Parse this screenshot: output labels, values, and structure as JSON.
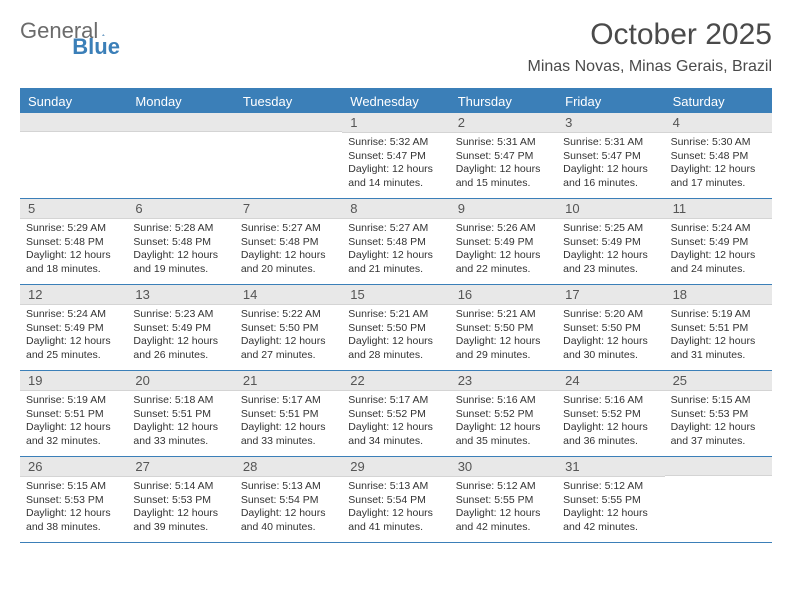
{
  "logo": {
    "text_gray": "General",
    "text_blue": "Blue"
  },
  "title": "October 2025",
  "location": "Minas Novas, Minas Gerais, Brazil",
  "colors": {
    "header_blue": "#3b7fb8",
    "daynum_bg": "#e8e8e8",
    "text_gray": "#6b6b6b",
    "text_dark": "#4a4a4a"
  },
  "day_headers": [
    "Sunday",
    "Monday",
    "Tuesday",
    "Wednesday",
    "Thursday",
    "Friday",
    "Saturday"
  ],
  "weeks": [
    [
      null,
      null,
      null,
      {
        "d": "1",
        "sr": "5:32 AM",
        "ss": "5:47 PM",
        "dl": "12 hours and 14 minutes."
      },
      {
        "d": "2",
        "sr": "5:31 AM",
        "ss": "5:47 PM",
        "dl": "12 hours and 15 minutes."
      },
      {
        "d": "3",
        "sr": "5:31 AM",
        "ss": "5:47 PM",
        "dl": "12 hours and 16 minutes."
      },
      {
        "d": "4",
        "sr": "5:30 AM",
        "ss": "5:48 PM",
        "dl": "12 hours and 17 minutes."
      }
    ],
    [
      {
        "d": "5",
        "sr": "5:29 AM",
        "ss": "5:48 PM",
        "dl": "12 hours and 18 minutes."
      },
      {
        "d": "6",
        "sr": "5:28 AM",
        "ss": "5:48 PM",
        "dl": "12 hours and 19 minutes."
      },
      {
        "d": "7",
        "sr": "5:27 AM",
        "ss": "5:48 PM",
        "dl": "12 hours and 20 minutes."
      },
      {
        "d": "8",
        "sr": "5:27 AM",
        "ss": "5:48 PM",
        "dl": "12 hours and 21 minutes."
      },
      {
        "d": "9",
        "sr": "5:26 AM",
        "ss": "5:49 PM",
        "dl": "12 hours and 22 minutes."
      },
      {
        "d": "10",
        "sr": "5:25 AM",
        "ss": "5:49 PM",
        "dl": "12 hours and 23 minutes."
      },
      {
        "d": "11",
        "sr": "5:24 AM",
        "ss": "5:49 PM",
        "dl": "12 hours and 24 minutes."
      }
    ],
    [
      {
        "d": "12",
        "sr": "5:24 AM",
        "ss": "5:49 PM",
        "dl": "12 hours and 25 minutes."
      },
      {
        "d": "13",
        "sr": "5:23 AM",
        "ss": "5:49 PM",
        "dl": "12 hours and 26 minutes."
      },
      {
        "d": "14",
        "sr": "5:22 AM",
        "ss": "5:50 PM",
        "dl": "12 hours and 27 minutes."
      },
      {
        "d": "15",
        "sr": "5:21 AM",
        "ss": "5:50 PM",
        "dl": "12 hours and 28 minutes."
      },
      {
        "d": "16",
        "sr": "5:21 AM",
        "ss": "5:50 PM",
        "dl": "12 hours and 29 minutes."
      },
      {
        "d": "17",
        "sr": "5:20 AM",
        "ss": "5:50 PM",
        "dl": "12 hours and 30 minutes."
      },
      {
        "d": "18",
        "sr": "5:19 AM",
        "ss": "5:51 PM",
        "dl": "12 hours and 31 minutes."
      }
    ],
    [
      {
        "d": "19",
        "sr": "5:19 AM",
        "ss": "5:51 PM",
        "dl": "12 hours and 32 minutes."
      },
      {
        "d": "20",
        "sr": "5:18 AM",
        "ss": "5:51 PM",
        "dl": "12 hours and 33 minutes."
      },
      {
        "d": "21",
        "sr": "5:17 AM",
        "ss": "5:51 PM",
        "dl": "12 hours and 33 minutes."
      },
      {
        "d": "22",
        "sr": "5:17 AM",
        "ss": "5:52 PM",
        "dl": "12 hours and 34 minutes."
      },
      {
        "d": "23",
        "sr": "5:16 AM",
        "ss": "5:52 PM",
        "dl": "12 hours and 35 minutes."
      },
      {
        "d": "24",
        "sr": "5:16 AM",
        "ss": "5:52 PM",
        "dl": "12 hours and 36 minutes."
      },
      {
        "d": "25",
        "sr": "5:15 AM",
        "ss": "5:53 PM",
        "dl": "12 hours and 37 minutes."
      }
    ],
    [
      {
        "d": "26",
        "sr": "5:15 AM",
        "ss": "5:53 PM",
        "dl": "12 hours and 38 minutes."
      },
      {
        "d": "27",
        "sr": "5:14 AM",
        "ss": "5:53 PM",
        "dl": "12 hours and 39 minutes."
      },
      {
        "d": "28",
        "sr": "5:13 AM",
        "ss": "5:54 PM",
        "dl": "12 hours and 40 minutes."
      },
      {
        "d": "29",
        "sr": "5:13 AM",
        "ss": "5:54 PM",
        "dl": "12 hours and 41 minutes."
      },
      {
        "d": "30",
        "sr": "5:12 AM",
        "ss": "5:55 PM",
        "dl": "12 hours and 42 minutes."
      },
      {
        "d": "31",
        "sr": "5:12 AM",
        "ss": "5:55 PM",
        "dl": "12 hours and 42 minutes."
      },
      null
    ]
  ],
  "labels": {
    "sunrise": "Sunrise:",
    "sunset": "Sunset:",
    "daylight": "Daylight:"
  }
}
